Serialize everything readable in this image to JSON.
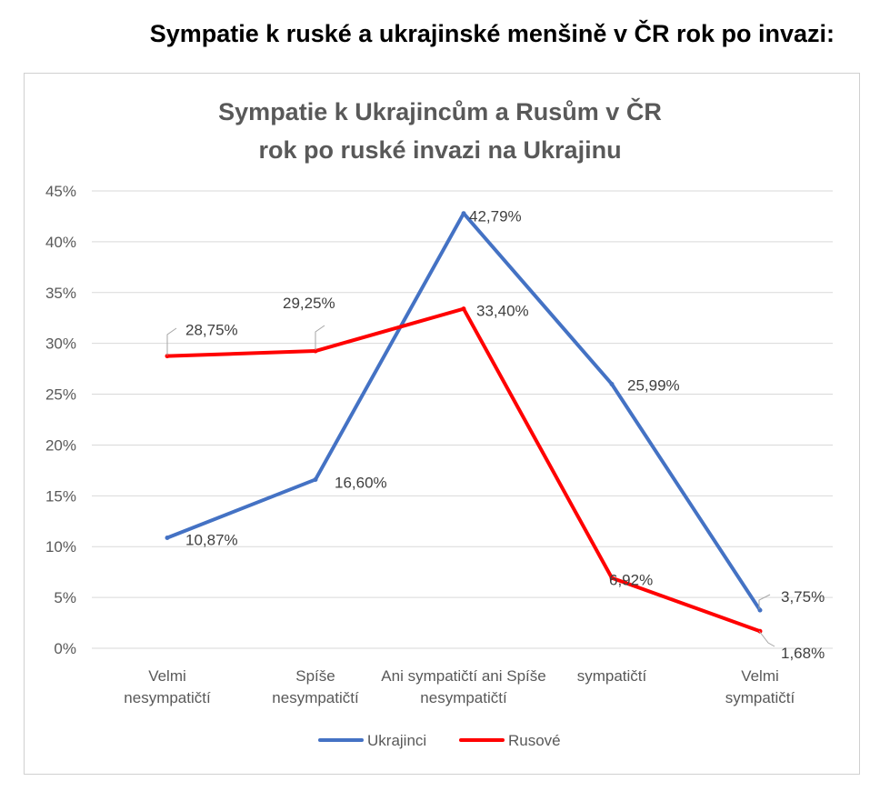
{
  "heading": "Sympatie k ruské a ukrajinské menšině v ČR rok po invazi:",
  "chart_data": {
    "type": "line",
    "title_lines": [
      "Sympatie k Ukrajincům a Rusům v ČR",
      "rok po ruské invazi na Ukrajinu"
    ],
    "categories": [
      [
        "Velmi",
        "nesympatičtí"
      ],
      [
        "Spíše",
        "nesympatičtí"
      ],
      [
        "Ani sympatičtí ani Spíše",
        "nesympatičtí"
      ],
      [
        "sympatičtí"
      ],
      [
        "Velmi",
        "sympatičtí"
      ]
    ],
    "y_ticks": [
      "0%",
      "5%",
      "10%",
      "15%",
      "20%",
      "25%",
      "30%",
      "35%",
      "40%",
      "45%"
    ],
    "ylim": [
      0,
      45
    ],
    "grid": true,
    "legend_position": "bottom",
    "series": [
      {
        "name": "Ukrajinci",
        "color": "#4472c4",
        "values": [
          10.87,
          16.6,
          42.79,
          25.99,
          3.75
        ],
        "labels": [
          "10,87%",
          "16,60%",
          "42,79%",
          "25,99%",
          "3,75%"
        ]
      },
      {
        "name": "Rusové",
        "color": "#ff0000",
        "values": [
          28.75,
          29.25,
          33.4,
          6.92,
          1.68
        ],
        "labels": [
          "28,75%",
          "29,25%",
          "33,40%",
          "6,92%",
          "1,68%"
        ]
      }
    ]
  }
}
